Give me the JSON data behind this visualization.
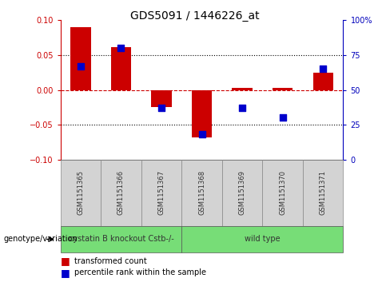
{
  "title": "GDS5091 / 1446226_at",
  "samples": [
    "GSM1151365",
    "GSM1151366",
    "GSM1151367",
    "GSM1151368",
    "GSM1151369",
    "GSM1151370",
    "GSM1151371"
  ],
  "red_values": [
    0.09,
    0.062,
    -0.025,
    -0.068,
    0.003,
    0.003,
    0.025
  ],
  "blue_pct": [
    67,
    80,
    37,
    18,
    37,
    30,
    65
  ],
  "ylim": [
    -0.1,
    0.1
  ],
  "yticks_left": [
    -0.1,
    -0.05,
    0,
    0.05,
    0.1
  ],
  "yticks_right_pct": [
    0,
    25,
    50,
    75,
    100
  ],
  "bar_color": "#cc0000",
  "blue_color": "#0000cc",
  "zero_line_color": "#cc0000",
  "dotted_line_color": "#000000",
  "left_axis_color": "#cc0000",
  "right_axis_color": "#0000bb",
  "sample_box_color": "#d3d3d3",
  "sample_box_edge": "#888888",
  "group1_color": "#77dd77",
  "group2_color": "#77dd77",
  "group1_label": "cystatin B knockout Cstb-/-",
  "group2_label": "wild type",
  "group1_samples": 3,
  "group2_samples": 4,
  "genotype_label": "genotype/variation",
  "legend_items": [
    "transformed count",
    "percentile rank within the sample"
  ],
  "legend_colors": [
    "#cc0000",
    "#0000cc"
  ],
  "bar_width": 0.5,
  "blue_marker_size": 40,
  "title_fontsize": 10,
  "axis_tick_fontsize": 7,
  "sample_fontsize": 6,
  "group_fontsize": 7,
  "legend_fontsize": 7,
  "genotype_fontsize": 7
}
